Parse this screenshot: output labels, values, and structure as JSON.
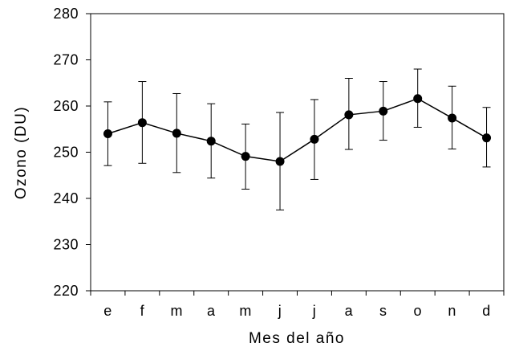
{
  "chart_data": {
    "type": "line",
    "xlabel": "Mes del año",
    "ylabel": "Ozono (DU)",
    "categories": [
      "e",
      "f",
      "m",
      "a",
      "m",
      "j",
      "j",
      "a",
      "s",
      "o",
      "n",
      "d"
    ],
    "ylim": [
      220,
      280
    ],
    "yticks": [
      "220",
      "230",
      "240",
      "250",
      "260",
      "270",
      "280"
    ],
    "series": [
      {
        "values": [
          254.0,
          256.4,
          254.1,
          252.4,
          249.1,
          248.0,
          252.8,
          258.1,
          258.9,
          261.6,
          257.4,
          253.1
        ],
        "error_low": [
          247.1,
          247.6,
          245.6,
          244.4,
          242.0,
          237.5,
          244.1,
          250.6,
          252.6,
          255.4,
          250.7,
          246.8
        ],
        "error_high": [
          260.9,
          265.3,
          262.7,
          260.5,
          256.1,
          258.6,
          261.4,
          266.0,
          265.3,
          268.0,
          264.3,
          259.7
        ]
      }
    ],
    "grid": false,
    "colors": {
      "line": "#000000",
      "marker": "#000000",
      "axis": "#000000"
    }
  }
}
